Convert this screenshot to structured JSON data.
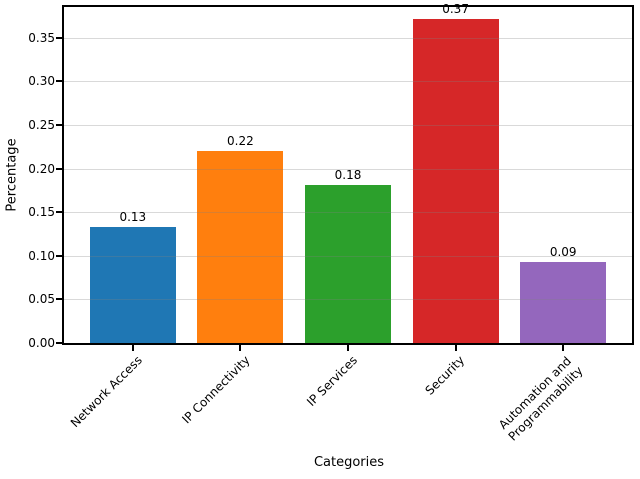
{
  "chart_data": {
    "type": "bar",
    "title": "",
    "xlabel": "Categories",
    "ylabel": "Percentage",
    "categories": [
      "Network Access",
      "IP Connectivity",
      "IP Services",
      "Security",
      "Automation and\nProgrammability"
    ],
    "values": [
      0.133,
      0.22,
      0.181,
      0.371,
      0.093
    ],
    "bar_labels": [
      "0.13",
      "0.22",
      "0.18",
      "0.37",
      "0.09"
    ],
    "colors": [
      "#1f77b4",
      "#ff7f0e",
      "#2ca02c",
      "#d62728",
      "#9467bd"
    ],
    "ylim": [
      0,
      0.385
    ],
    "yticks": [
      0,
      0.05,
      0.1,
      0.15,
      0.2,
      0.25,
      0.3,
      0.35
    ],
    "ytick_labels": [
      "0.00",
      "0.05",
      "0.10",
      "0.15",
      "0.20",
      "0.25",
      "0.30",
      "0.35"
    ],
    "bar_width_fraction": 0.8,
    "grid": "horizontal-over-bars",
    "legend": "none",
    "frame_color": "#000000",
    "grid_color": "rgba(128,128,128,0.30)",
    "background_color": "#ffffff"
  }
}
